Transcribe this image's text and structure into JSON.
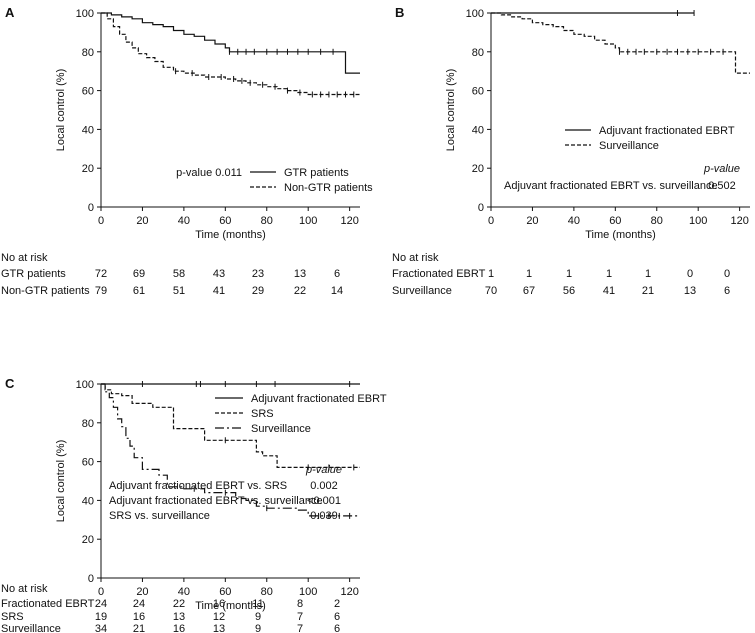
{
  "chart_data": [
    {
      "panel": "A",
      "type": "line",
      "xlabel": "Time (months)",
      "ylabel": "Local control (%)",
      "xlim": [
        0,
        125
      ],
      "ylim": [
        0,
        100
      ],
      "xticks": [
        0,
        20,
        40,
        60,
        80,
        100,
        120
      ],
      "yticks": [
        0,
        20,
        40,
        60,
        80,
        100
      ],
      "pvalue_text": "p-value 0.011",
      "series": [
        {
          "name": "GTR patients",
          "style": "solid",
          "x": [
            0,
            5,
            10,
            15,
            20,
            25,
            30,
            35,
            40,
            45,
            50,
            55,
            60,
            62,
            70,
            80,
            90,
            100,
            110,
            117,
            118,
            125
          ],
          "y": [
            100,
            99,
            98,
            97,
            95,
            94,
            93,
            91,
            89,
            88,
            86,
            84,
            82,
            80,
            80,
            80,
            80,
            80,
            80,
            80,
            69,
            69
          ],
          "censor": [
            62,
            66,
            70,
            74,
            80,
            85,
            90,
            95,
            100,
            106,
            112
          ]
        },
        {
          "name": "Non-GTR patients",
          "style": "dashed",
          "x": [
            0,
            3,
            6,
            9,
            12,
            15,
            18,
            22,
            26,
            30,
            35,
            40,
            45,
            50,
            55,
            60,
            65,
            70,
            75,
            80,
            85,
            90,
            95,
            100,
            110,
            120,
            125
          ],
          "y": [
            100,
            97,
            93,
            89,
            85,
            82,
            79,
            77,
            75,
            72,
            70,
            69,
            68,
            67,
            67,
            66,
            65,
            64,
            63,
            62,
            61,
            60,
            59,
            58,
            58,
            58,
            58
          ],
          "censor": [
            36,
            44,
            52,
            58,
            64,
            68,
            72,
            78,
            84,
            90,
            96,
            102,
            106,
            110,
            114,
            118,
            122
          ]
        }
      ],
      "risk_table": {
        "title": "No at risk",
        "times": [
          0,
          20,
          40,
          60,
          80,
          100,
          120
        ],
        "rows": [
          {
            "label": "GTR patients",
            "values": [
              "72",
              "69",
              "58",
              "43",
              "23",
              "13",
              "6"
            ]
          },
          {
            "label": "Non-GTR patients",
            "values": [
              "79",
              "61",
              "51",
              "41",
              "29",
              "22",
              "14"
            ]
          }
        ]
      }
    },
    {
      "panel": "B",
      "type": "line",
      "xlabel": "Time (months)",
      "ylabel": "Local control (%)",
      "xlim": [
        0,
        125
      ],
      "ylim": [
        0,
        100
      ],
      "xticks": [
        0,
        20,
        40,
        60,
        80,
        100,
        120
      ],
      "yticks": [
        0,
        20,
        40,
        60,
        80,
        100
      ],
      "pvalue_header": "p-value",
      "comparisons": [
        {
          "label": "Adjuvant fractionated EBRT vs. surveillance",
          "p": "0.502"
        }
      ],
      "series": [
        {
          "name": "Adjuvant fractionated EBRT",
          "style": "solid",
          "x": [
            0,
            98
          ],
          "y": [
            100,
            100
          ],
          "censor": [
            90,
            98
          ]
        },
        {
          "name": "Surveillance",
          "style": "dashed",
          "x": [
            0,
            5,
            10,
            15,
            20,
            25,
            30,
            35,
            40,
            45,
            50,
            55,
            60,
            62,
            70,
            80,
            90,
            100,
            110,
            117,
            118,
            125
          ],
          "y": [
            100,
            99,
            98,
            97,
            95,
            94,
            93,
            91,
            89,
            88,
            86,
            84,
            82,
            80,
            80,
            80,
            80,
            80,
            80,
            80,
            69,
            69
          ],
          "censor": [
            62,
            66,
            70,
            74,
            80,
            85,
            90,
            95,
            100,
            106,
            112
          ]
        }
      ],
      "risk_table": {
        "title": "No at risk",
        "times": [
          0,
          20,
          40,
          60,
          80,
          100,
          120
        ],
        "rows": [
          {
            "label": "Fractionated EBRT",
            "values": [
              "1",
              "1",
              "1",
              "1",
              "1",
              "0",
              "0"
            ]
          },
          {
            "label": "Surveillance",
            "values": [
              "70",
              "67",
              "56",
              "41",
              "21",
              "13",
              "6"
            ]
          }
        ]
      }
    },
    {
      "panel": "C",
      "type": "line",
      "xlabel": "Time (months)",
      "ylabel": "Local control (%)",
      "xlim": [
        0,
        125
      ],
      "ylim": [
        0,
        100
      ],
      "xticks": [
        0,
        20,
        40,
        60,
        80,
        100,
        120
      ],
      "yticks": [
        0,
        20,
        40,
        60,
        80,
        100
      ],
      "pvalue_header": "p-value",
      "comparisons": [
        {
          "label": "Adjuvant fractionated EBRT vs. SRS",
          "p": "0.002"
        },
        {
          "label": "Adjuvant fractionated EBRT vs. surveillance",
          "p": "<0.001"
        },
        {
          "label": "SRS vs. surveillance",
          "p": "0.039"
        }
      ],
      "series": [
        {
          "name": "Adjuvant fractionated EBRT",
          "style": "solid",
          "x": [
            0,
            125
          ],
          "y": [
            100,
            100
          ],
          "censor": [
            20,
            46,
            48,
            60,
            75,
            84,
            120
          ]
        },
        {
          "name": "SRS",
          "style": "dashed",
          "x": [
            0,
            2,
            5,
            10,
            15,
            25,
            35,
            50,
            60,
            75,
            78,
            85,
            125
          ],
          "y": [
            100,
            97,
            95,
            94,
            90,
            88,
            77,
            71,
            71,
            65,
            63,
            57,
            57
          ],
          "censor": [
            60,
            100,
            110,
            122
          ]
        },
        {
          "name": "Surveillance",
          "style": "dashdot",
          "x": [
            0,
            2,
            4,
            6,
            8,
            10,
            12,
            14,
            16,
            20,
            22,
            28,
            32,
            40,
            50,
            55,
            65,
            70,
            75,
            80,
            90,
            95,
            100,
            125
          ],
          "y": [
            100,
            96,
            93,
            88,
            82,
            78,
            72,
            68,
            62,
            56,
            56,
            53,
            47,
            46,
            44,
            44,
            41,
            40,
            37,
            36,
            36,
            35,
            32,
            32
          ],
          "censor": [
            45,
            60,
            80,
            105,
            110,
            115,
            120
          ]
        }
      ],
      "risk_table": {
        "title": "No at risk",
        "times": [
          0,
          20,
          40,
          60,
          80,
          100,
          120
        ],
        "rows": [
          {
            "label": "Fractionated EBRT",
            "values": [
              "24",
              "24",
              "22",
              "16",
              "11",
              "8",
              "2"
            ]
          },
          {
            "label": "SRS",
            "values": [
              "19",
              "16",
              "13",
              "12",
              "9",
              "7",
              "6"
            ]
          },
          {
            "label": "Surveillance",
            "values": [
              "34",
              "21",
              "16",
              "13",
              "9",
              "7",
              "6"
            ]
          }
        ]
      }
    }
  ]
}
